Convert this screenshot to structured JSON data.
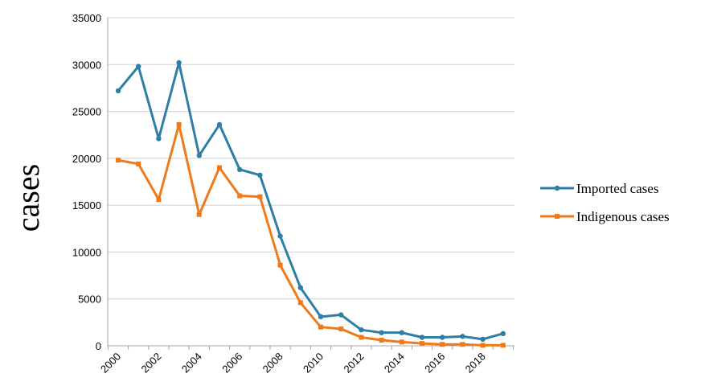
{
  "chart_data": {
    "type": "line",
    "title": "",
    "xlabel": "",
    "ylabel": "cases",
    "x": [
      2000,
      2001,
      2002,
      2003,
      2004,
      2005,
      2006,
      2007,
      2008,
      2009,
      2010,
      2011,
      2012,
      2013,
      2014,
      2015,
      2016,
      2017,
      2018,
      2019
    ],
    "x_tick_labels": [
      "2000",
      "2002",
      "2004",
      "2006",
      "2008",
      "2010",
      "2012",
      "2014",
      "2016",
      "2018"
    ],
    "ylim": [
      0,
      35000
    ],
    "y_ticks": [
      "0",
      "5000",
      "10000",
      "15000",
      "20000",
      "25000",
      "30000",
      "35000"
    ],
    "grid": "horizontal",
    "legend_position": "right",
    "series": [
      {
        "name": "Imported cases",
        "color": "#2e7ea6",
        "marker": "circle",
        "values": [
          27200,
          29800,
          22100,
          30200,
          20300,
          23600,
          18800,
          18200,
          11700,
          6200,
          3100,
          3300,
          1700,
          1400,
          1400,
          900,
          900,
          1000,
          700,
          1300
        ]
      },
      {
        "name": "Indigenous cases",
        "color": "#f07a1a",
        "marker": "square",
        "values": [
          19800,
          19400,
          15600,
          23600,
          14000,
          19000,
          16000,
          15900,
          8600,
          4600,
          2000,
          1800,
          900,
          600,
          400,
          250,
          150,
          150,
          50,
          50
        ]
      }
    ]
  }
}
